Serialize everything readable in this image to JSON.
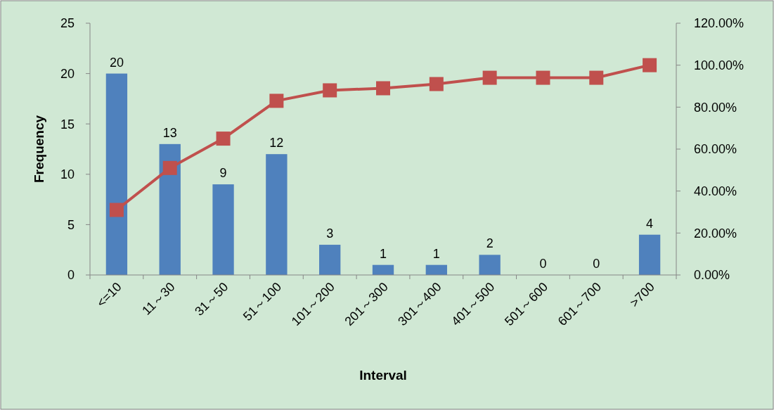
{
  "chart_data": {
    "type": "bar",
    "xlabel": "Interval",
    "ylabel": "Frequency",
    "categories": [
      "<=10",
      "11～30",
      "31～50",
      "51～100",
      "101～200",
      "201～300",
      "301～400",
      "401～500",
      "501～600",
      "601～700",
      ">700"
    ],
    "series": [
      {
        "color": "#4f81bd",
        "values": [
          20,
          13,
          9,
          12,
          3,
          1,
          1,
          2,
          0,
          0,
          4
        ],
        "value_labels": [
          "20",
          "13",
          "9",
          "12",
          "3",
          "1",
          "1",
          "2",
          "0",
          "0",
          "4"
        ]
      },
      {
        "type": "line",
        "axis": "y2",
        "color": "#c0504d",
        "marker": "square",
        "values": [
          31,
          51,
          65,
          83,
          88,
          89,
          91,
          94,
          94,
          94,
          100
        ]
      }
    ],
    "ylim": [
      0,
      25
    ],
    "yticks": [
      0,
      5,
      10,
      15,
      20,
      25
    ],
    "y2lim": [
      0,
      120
    ],
    "y2ticks": [
      {
        "value": 0,
        "label": "0.00%"
      },
      {
        "value": 20,
        "label": "20.00%"
      },
      {
        "value": 40,
        "label": "40.00%"
      },
      {
        "value": 60,
        "label": "60.00%"
      },
      {
        "value": 80,
        "label": "80.00%"
      },
      {
        "value": 100,
        "label": "100.00%"
      },
      {
        "value": 120,
        "label": "120.00%"
      }
    ],
    "grid": false
  }
}
